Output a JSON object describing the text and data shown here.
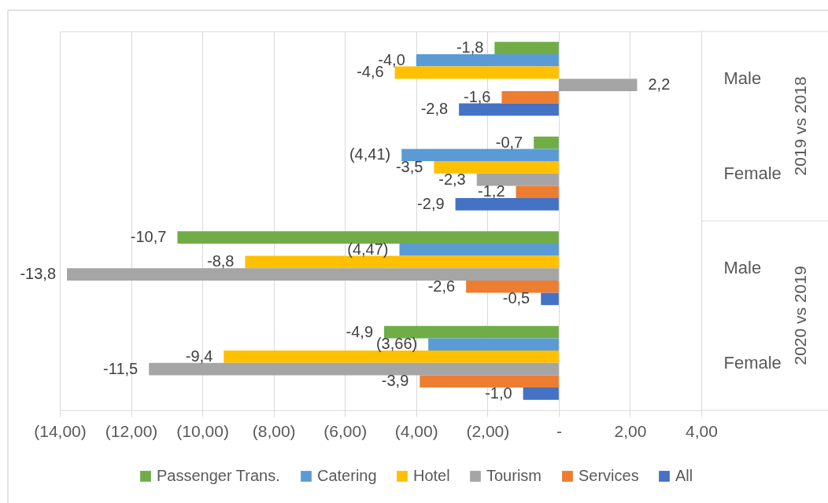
{
  "chart_data": {
    "type": "bar",
    "orientation": "horizontal",
    "categories": [
      "Male",
      "Female",
      "Male",
      "Female"
    ],
    "annotations": [
      "2019 vs 2018",
      "2020 vs 2019"
    ],
    "series": [
      {
        "name": "Passenger Trans.",
        "color": "#70ad47",
        "values": [
          -1.8,
          -0.7,
          -10.7,
          -4.9
        ],
        "value_labels": [
          "-1,8",
          "-0,7",
          "-10,7",
          "-4,9"
        ]
      },
      {
        "name": "Catering",
        "color": "#5b9bd5",
        "values": [
          -4.0,
          -4.41,
          -4.47,
          -3.66
        ],
        "value_labels": [
          "-4,0",
          "(4,41)",
          "(4,47)",
          "(3,66)"
        ]
      },
      {
        "name": "Hotel",
        "color": "#ffc000",
        "values": [
          -4.6,
          -3.5,
          -8.8,
          -9.4
        ],
        "value_labels": [
          "-4,6",
          "-3,5",
          "-8,8",
          "-9,4"
        ]
      },
      {
        "name": "Tourism",
        "color": "#a5a5a5",
        "values": [
          2.2,
          -2.3,
          -13.8,
          -11.5
        ],
        "value_labels": [
          "2,2",
          "-2,3",
          "-13,8",
          "-11,5"
        ]
      },
      {
        "name": "Services",
        "color": "#ed7d31",
        "values": [
          -1.6,
          -1.2,
          -2.6,
          -3.9
        ],
        "value_labels": [
          "-1,6",
          "-1,2",
          "-2,6",
          "-3,9"
        ]
      },
      {
        "name": "All",
        "color": "#4472c4",
        "values": [
          -2.8,
          -2.9,
          -0.5,
          -1.0
        ],
        "value_labels": [
          "-2,8",
          "-2,9",
          "-0,5",
          "-1,0"
        ]
      }
    ],
    "xlim": [
      -14,
      4
    ],
    "xticks": [
      {
        "value": -14,
        "label": "(14,00)"
      },
      {
        "value": -12,
        "label": "(12,00)"
      },
      {
        "value": -10,
        "label": "(10,00)"
      },
      {
        "value": -8,
        "label": "(8,00)"
      },
      {
        "value": -6,
        "label": "(6,00)"
      },
      {
        "value": -4,
        "label": "(4,00)"
      },
      {
        "value": -2,
        "label": "(2,00)"
      },
      {
        "value": 0,
        "label": "-"
      },
      {
        "value": 2,
        "label": "2,00"
      },
      {
        "value": 4,
        "label": "4,00"
      }
    ],
    "grid": "x",
    "legend": "bottom"
  }
}
